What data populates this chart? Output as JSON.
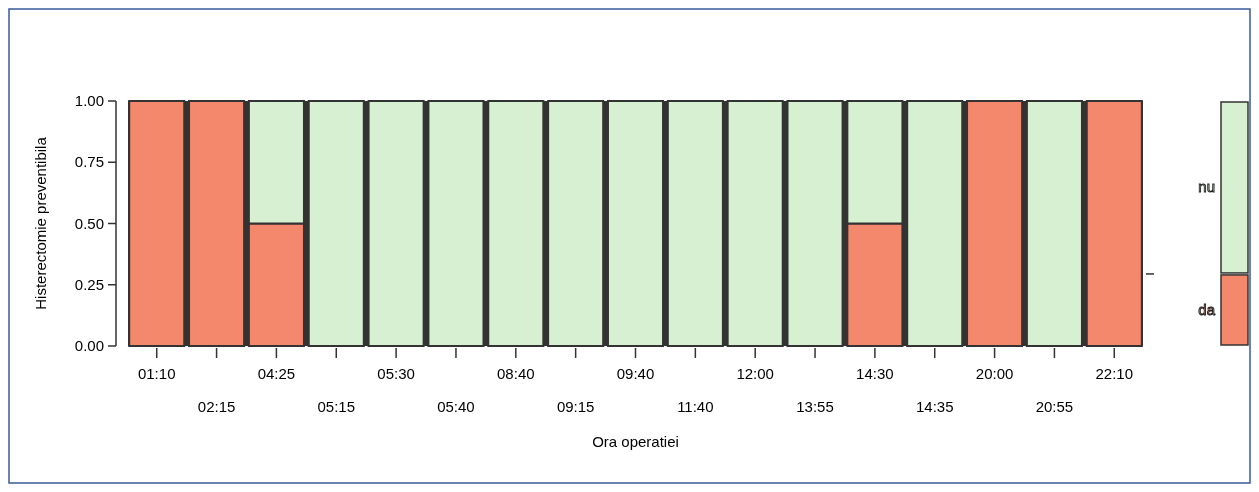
{
  "chart_data": {
    "type": "bar",
    "stacked": true,
    "xlabel": "Ora operatiei",
    "ylabel": "Histerectomie preventibila",
    "categories": [
      "01:10",
      "02:15",
      "04:25",
      "05:15",
      "05:30",
      "05:40",
      "08:40",
      "09:15",
      "09:40",
      "11:40",
      "12:00",
      "13:55",
      "14:30",
      "14:35",
      "20:00",
      "20:55",
      "22:10"
    ],
    "series": [
      {
        "name": "da",
        "color": "#f4886c",
        "values": [
          1,
          1,
          0.5,
          0,
          0,
          0,
          0,
          0,
          0,
          0,
          0,
          0,
          0.5,
          0,
          1,
          0,
          1
        ]
      },
      {
        "name": "nu",
        "color": "#d8f0d2",
        "values": [
          0,
          0,
          0.5,
          1,
          1,
          1,
          1,
          1,
          1,
          1,
          1,
          1,
          0.5,
          1,
          0,
          1,
          0
        ]
      }
    ],
    "ylim": [
      0,
      1
    ],
    "yticks": [
      {
        "value": 0,
        "label": "0.00"
      },
      {
        "value": 0.25,
        "label": "0.25"
      },
      {
        "value": 0.5,
        "label": "0.50"
      },
      {
        "value": 0.75,
        "label": "0.75"
      },
      {
        "value": 1,
        "label": "1.00"
      }
    ],
    "grid": false,
    "legend": "right"
  }
}
